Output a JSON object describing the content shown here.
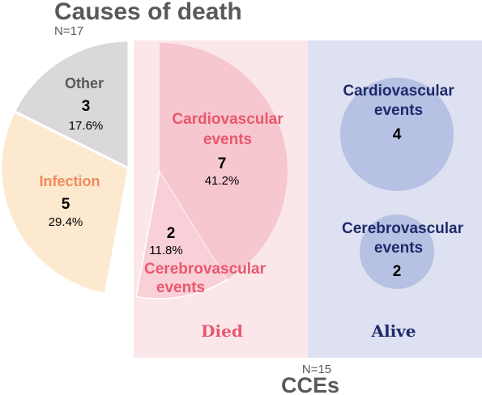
{
  "title": "Causes of death",
  "title_n": "N=17",
  "footer_n": "N=15",
  "footer_title": "CCEs",
  "colors": {
    "cardio": "#f6c7cf",
    "cardio_text": "#e8586e",
    "cerebro": "#f9d0d7",
    "infection": "#fde9cf",
    "infection_text": "#ef8a5e",
    "other": "#d9d9d9",
    "other_text": "#595959",
    "panel_died": "#fbe7ea",
    "panel_alive": "#dde1f1",
    "bubble": "#b7c1e3",
    "navy": "#1f2a6b",
    "title": "#595959"
  },
  "chart_data": [
    {
      "type": "pie",
      "title": "Causes of death",
      "n": "N=17",
      "slices": [
        {
          "label": "Cardiovascular events",
          "count": 7,
          "percent": "41.2%"
        },
        {
          "label": "Cerebrovascular events",
          "count": 2,
          "percent": "11.8%"
        },
        {
          "label": "Infection",
          "count": 5,
          "percent": "29.4%"
        },
        {
          "label": "Other",
          "count": 3,
          "percent": "17.6%"
        }
      ],
      "exploded": [
        "Cardiovascular events",
        "Cerebrovascular events"
      ]
    },
    {
      "type": "bubble",
      "title": "CCEs",
      "n": "N=15",
      "groups": [
        {
          "label": "Died",
          "items": [
            {
              "label": "Cardiovascular events",
              "value": 7
            },
            {
              "label": "Cerebrovascular events",
              "value": 2
            }
          ]
        },
        {
          "label": "Alive",
          "items": [
            {
              "label": "Cardiovascular events",
              "value": 4
            },
            {
              "label": "Cerebrovascular events",
              "value": 2
            }
          ]
        }
      ]
    }
  ]
}
